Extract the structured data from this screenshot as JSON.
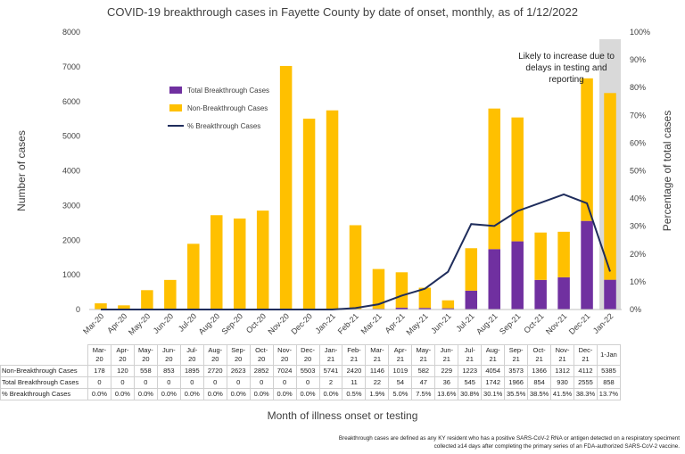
{
  "title": "COVID-19 breakthrough cases in Fayette County by date of onset, monthly, as of 1/12/2022",
  "chart_data": {
    "type": "bar",
    "stacked": true,
    "categories": [
      "Mar-20",
      "Apr-20",
      "May-20",
      "Jun-20",
      "Jul-20",
      "Aug-20",
      "Sep-20",
      "Oct-20",
      "Nov-20",
      "Dec-20",
      "Jan-21",
      "Feb-21",
      "Mar-21",
      "Apr-21",
      "May-21",
      "Jun-21",
      "Jul-21",
      "Aug-21",
      "Sep-21",
      "Oct-21",
      "Nov-21",
      "Dec-21",
      "Jan-22"
    ],
    "table_headers": [
      [
        "Mar-",
        "20"
      ],
      [
        "Apr-",
        "20"
      ],
      [
        "May-",
        "20"
      ],
      [
        "Jun-",
        "20"
      ],
      [
        "Jul-",
        "20"
      ],
      [
        "Aug-",
        "20"
      ],
      [
        "Sep-",
        "20"
      ],
      [
        "Oct-",
        "20"
      ],
      [
        "Nov-",
        "20"
      ],
      [
        "Dec-",
        "20"
      ],
      [
        "Jan-",
        "21"
      ],
      [
        "Feb-",
        "21"
      ],
      [
        "Mar-",
        "21"
      ],
      [
        "Apr-",
        "21"
      ],
      [
        "May-",
        "21"
      ],
      [
        "Jun-",
        "21"
      ],
      [
        "Jul-",
        "21"
      ],
      [
        "Aug-",
        "21"
      ],
      [
        "Sep-",
        "21"
      ],
      [
        "Oct-",
        "21"
      ],
      [
        "Nov-",
        "21"
      ],
      [
        "Dec-",
        "21"
      ],
      [
        "1-Jan",
        ""
      ]
    ],
    "series": [
      {
        "name": "Total Breakthrough Cases",
        "color": "#7030a0",
        "values": [
          0,
          0,
          0,
          0,
          0,
          0,
          0,
          0,
          0,
          0,
          2,
          11,
          22,
          54,
          47,
          36,
          545,
          1742,
          1966,
          854,
          930,
          2555,
          858
        ]
      },
      {
        "name": "Non-Breakthrough Cases",
        "color": "#ffc000",
        "values": [
          178,
          120,
          558,
          853,
          1895,
          2720,
          2623,
          2852,
          7024,
          5503,
          5741,
          2420,
          1146,
          1019,
          582,
          229,
          1223,
          4054,
          3573,
          1366,
          1312,
          4112,
          5385
        ]
      },
      {
        "name": "% Breakthrough Cases",
        "color": "#1f2d5c",
        "axis": "right",
        "values": [
          0.0,
          0.0,
          0.0,
          0.0,
          0.0,
          0.0,
          0.0,
          0.0,
          0.0,
          0.0,
          0.0,
          0.5,
          1.9,
          5.0,
          7.5,
          13.6,
          30.8,
          30.1,
          35.5,
          38.5,
          41.5,
          38.3,
          13.7
        ]
      }
    ],
    "table_rows": [
      {
        "label": "Non-Breakthrough Cases",
        "cells": [
          "178",
          "120",
          "558",
          "853",
          "1895",
          "2720",
          "2623",
          "2852",
          "7024",
          "5503",
          "5741",
          "2420",
          "1146",
          "1019",
          "582",
          "229",
          "1223",
          "4054",
          "3573",
          "1366",
          "1312",
          "4112",
          "5385"
        ]
      },
      {
        "label": "Total Breakthrough Cases",
        "cells": [
          "0",
          "0",
          "0",
          "0",
          "0",
          "0",
          "0",
          "0",
          "0",
          "0",
          "2",
          "11",
          "22",
          "54",
          "47",
          "36",
          "545",
          "1742",
          "1966",
          "854",
          "930",
          "2555",
          "858"
        ]
      },
      {
        "label": "% Breakthrough Cases",
        "cells": [
          "0.0%",
          "0.0%",
          "0.0%",
          "0.0%",
          "0.0%",
          "0.0%",
          "0.0%",
          "0.0%",
          "0.0%",
          "0.0%",
          "0.0%",
          "0.5%",
          "1.9%",
          "5.0%",
          "7.5%",
          "13.6%",
          "30.8%",
          "30.1%",
          "35.5%",
          "38.5%",
          "41.5%",
          "38.3%",
          "13.7%"
        ]
      }
    ],
    "ylabel": "Number of cases",
    "ylabel_right": "Percentage of total cases",
    "xlabel": "Month of illness onset or testing",
    "ylim": [
      0,
      8000
    ],
    "yticks": [
      "0",
      "1000",
      "2000",
      "3000",
      "4000",
      "5000",
      "6000",
      "7000",
      "8000"
    ],
    "ylim_right": [
      0,
      100
    ],
    "yticks_right": [
      "0%",
      "10%",
      "20%",
      "30%",
      "40%",
      "50%",
      "60%",
      "70%",
      "80%",
      "90%",
      "100%"
    ],
    "highlight_category": "Jan-22",
    "annotation": [
      "Likely to increase due to",
      "delays in testing and",
      "reporting"
    ],
    "legend_position": "upper-center",
    "grid": false
  },
  "footnote": [
    "Breakthrough cases are defined as any KY resident who has a positive SARS-CoV-2 RNA or antigen detected on a respiratory speciment",
    "collected ≥14 days after completing the primary series of an FDA-authorized SARS-CoV-2 vaccine."
  ]
}
